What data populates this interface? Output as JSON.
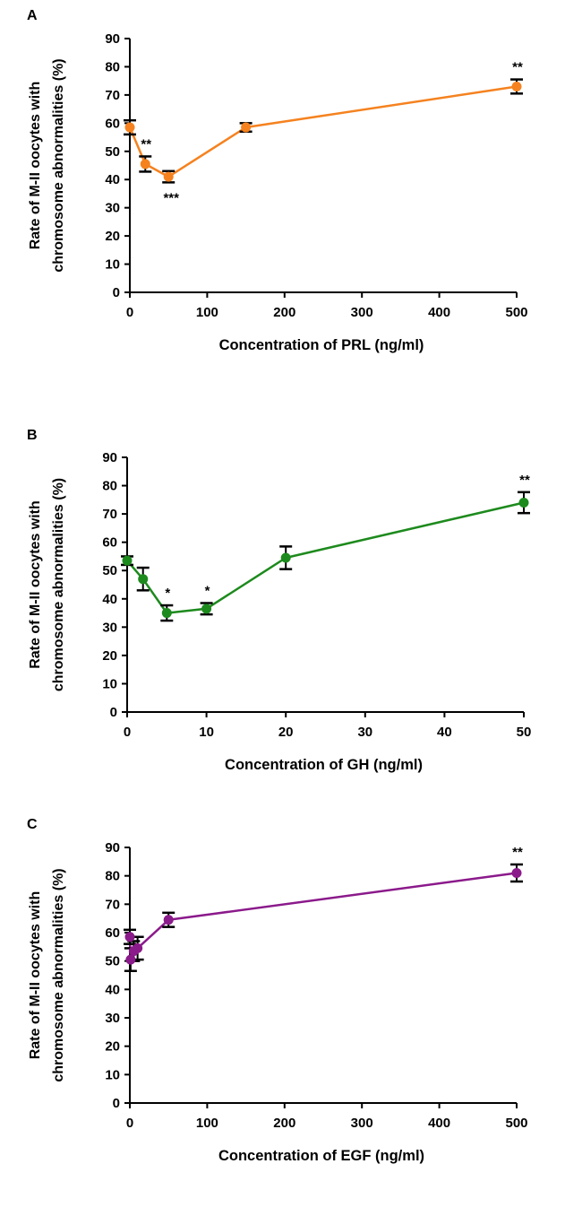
{
  "chart_data": [
    {
      "type": "line",
      "panel": "A",
      "color": "#f5821f",
      "xlabel": "Concentration of PRL (ng/ml)",
      "ylabel_lines": [
        "Rate of M-II oocytes with",
        "chromosome abnormalities (%)"
      ],
      "xlim": [
        0,
        500
      ],
      "ylim": [
        0,
        90
      ],
      "xticks": [
        0,
        100,
        200,
        300,
        400,
        500
      ],
      "yticks": [
        0,
        10,
        20,
        30,
        40,
        50,
        60,
        70,
        80,
        90
      ],
      "series": [
        {
          "name": "PRL",
          "points": [
            {
              "x": 0,
              "y": 58.5,
              "err": 2.5,
              "sig": ""
            },
            {
              "x": 20,
              "y": 45.5,
              "err": 2.7,
              "sig": "**"
            },
            {
              "x": 50,
              "y": 41.0,
              "err": 2.0,
              "sig": "***"
            },
            {
              "x": 150,
              "y": 58.5,
              "err": 1.5,
              "sig": ""
            },
            {
              "x": 500,
              "y": 73.0,
              "err": 2.5,
              "sig": "**"
            }
          ]
        }
      ]
    },
    {
      "type": "line",
      "panel": "B",
      "color": "#1d8a1d",
      "xlabel": "Concentration of GH (ng/ml)",
      "ylabel_lines": [
        "Rate of M-II oocytes with",
        "chromosome abnormalities (%)"
      ],
      "xlim": [
        0,
        50
      ],
      "ylim": [
        0,
        90
      ],
      "xticks": [
        0,
        10,
        20,
        30,
        40,
        50
      ],
      "yticks": [
        0,
        10,
        20,
        30,
        40,
        50,
        60,
        70,
        80,
        90
      ],
      "series": [
        {
          "name": "GH",
          "points": [
            {
              "x": 0,
              "y": 53.5,
              "err": 1.5,
              "sig": ""
            },
            {
              "x": 2,
              "y": 47.0,
              "err": 4.0,
              "sig": ""
            },
            {
              "x": 5,
              "y": 35.0,
              "err": 2.7,
              "sig": "*"
            },
            {
              "x": 10,
              "y": 36.5,
              "err": 2.0,
              "sig": "*"
            },
            {
              "x": 20,
              "y": 54.5,
              "err": 4.0,
              "sig": ""
            },
            {
              "x": 50,
              "y": 74.0,
              "err": 3.7,
              "sig": "**"
            }
          ]
        }
      ]
    },
    {
      "type": "line",
      "panel": "C",
      "color": "#8b1a8b",
      "xlabel": "Concentration of EGF (ng/ml)",
      "ylabel_lines": [
        "Rate of M-II oocytes with",
        "chromosome abnormalities (%)"
      ],
      "xlim": [
        0,
        500
      ],
      "ylim": [
        0,
        90
      ],
      "xticks": [
        0,
        100,
        200,
        300,
        400,
        500
      ],
      "yticks": [
        0,
        10,
        20,
        30,
        40,
        50,
        60,
        70,
        80,
        90
      ],
      "series": [
        {
          "name": "EGF",
          "points": [
            {
              "x": 0,
              "y": 58.5,
              "err": 2.5,
              "sig": ""
            },
            {
              "x": 1,
              "y": 50.5,
              "err": 4.0,
              "sig": ""
            },
            {
              "x": 5,
              "y": 53.5,
              "err": 3.5,
              "sig": ""
            },
            {
              "x": 10,
              "y": 54.5,
              "err": 4.0,
              "sig": ""
            },
            {
              "x": 50,
              "y": 64.5,
              "err": 2.5,
              "sig": ""
            },
            {
              "x": 500,
              "y": 81.0,
              "err": 3.0,
              "sig": "**"
            }
          ]
        }
      ]
    }
  ]
}
